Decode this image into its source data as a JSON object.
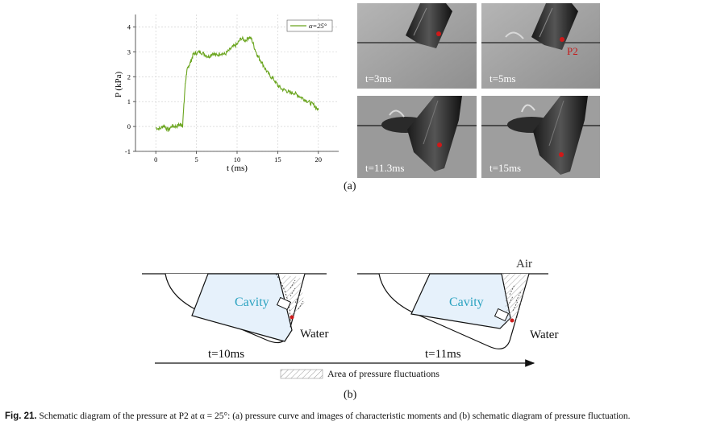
{
  "figure": {
    "panel_a_label": "(a)",
    "panel_b_label": "(b)",
    "caption_label": "Fig. 21.",
    "caption_text": "Schematic diagram of the pressure at P2 at α = 25°: (a) pressure curve and images of characteristic moments and (b) schematic diagram of pressure fluctuation."
  },
  "chart_data": {
    "type": "line",
    "xlabel": "t (ms)",
    "ylabel": "P (kPa)",
    "xlim": [
      -2.5,
      22.5
    ],
    "ylim": [
      -1,
      4.5
    ],
    "xticks": [
      0,
      5,
      10,
      15,
      20
    ],
    "yticks": [
      -1,
      0,
      1,
      2,
      3,
      4
    ],
    "grid": true,
    "legend_position": "top-right",
    "series": [
      {
        "name": "α=25°",
        "color": "#6aa51e",
        "x": [
          0,
          0.5,
          1,
          1.5,
          2,
          2.5,
          3,
          3.3,
          3.6,
          3.8,
          4,
          4.3,
          4.6,
          5,
          5.5,
          6,
          6.5,
          7,
          7.5,
          8,
          8.5,
          9,
          9.5,
          10,
          10.5,
          11,
          11.5,
          11.8,
          12.2,
          12.6,
          13,
          13.5,
          14,
          14.5,
          15,
          15.5,
          16,
          16.5,
          17,
          17.5,
          18,
          18.5,
          19,
          19.5,
          20
        ],
        "y": [
          -0.05,
          -0.1,
          0.05,
          -0.15,
          0.02,
          0.0,
          0.08,
          0.05,
          1.6,
          2.2,
          2.4,
          2.6,
          2.9,
          2.95,
          3.0,
          2.9,
          2.8,
          2.95,
          2.85,
          2.95,
          2.9,
          3.05,
          3.2,
          3.3,
          3.55,
          3.45,
          3.6,
          3.5,
          3.1,
          2.8,
          2.6,
          2.3,
          2.05,
          1.9,
          1.65,
          1.5,
          1.45,
          1.35,
          1.35,
          1.25,
          1.15,
          1.05,
          0.95,
          0.85,
          0.65
        ]
      }
    ]
  },
  "photos": [
    {
      "time": "t=3ms",
      "marker": ""
    },
    {
      "time": "t=5ms",
      "marker": "P2"
    },
    {
      "time": "t=11.3ms",
      "marker": ""
    },
    {
      "time": "t=15ms",
      "marker": ""
    }
  ],
  "schematic": {
    "left": {
      "cavity": "Cavity",
      "water": "Water",
      "time": "t=10ms"
    },
    "right": {
      "cavity": "Cavity",
      "water": "Water",
      "air": "Air",
      "time": "t=11ms"
    },
    "legend": "Area of pressure fluctuations",
    "colors": {
      "cavity": "#2aa2c0",
      "cavity_fill": "#e6f1fb",
      "marker": "#cc1a1a"
    }
  }
}
